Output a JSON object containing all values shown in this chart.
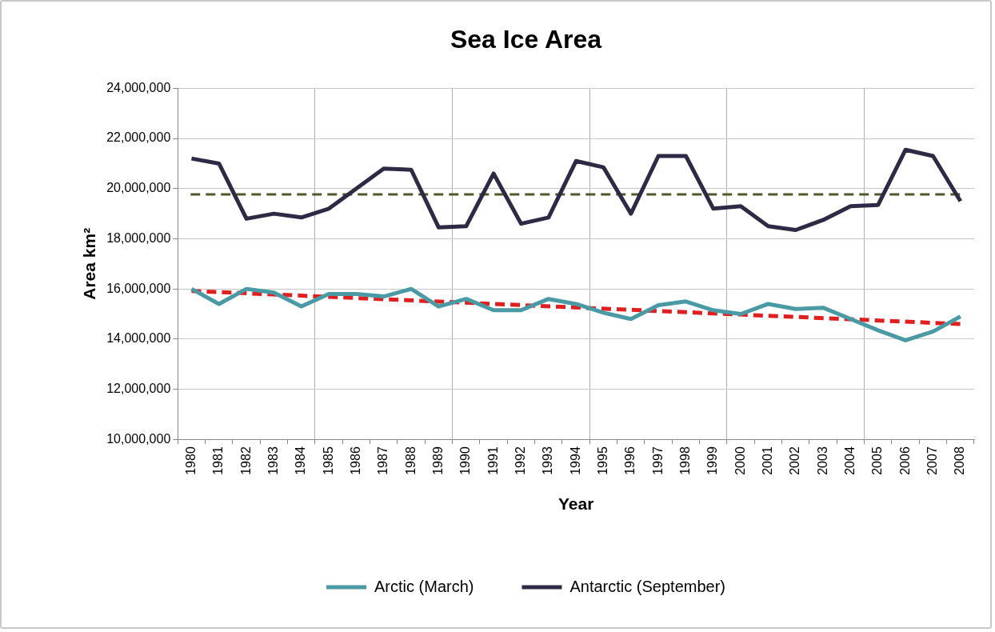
{
  "chart_data": {
    "type": "line",
    "title": "Sea Ice Area",
    "xlabel": "Year",
    "ylabel": "Area km²",
    "categories": [
      "1980",
      "1981",
      "1982",
      "1983",
      "1984",
      "1985",
      "1986",
      "1987",
      "1988",
      "1989",
      "1990",
      "1991",
      "1992",
      "1993",
      "1994",
      "1995",
      "1996",
      "1997",
      "1998",
      "1999",
      "2000",
      "2001",
      "2002",
      "2003",
      "2004",
      "2005",
      "2006",
      "2007",
      "2008"
    ],
    "series": [
      {
        "name": "Arctic (March)",
        "color": "#4a9aa5",
        "values": [
          16000000,
          15400000,
          16000000,
          15850000,
          15300000,
          15800000,
          15800000,
          15700000,
          16000000,
          15300000,
          15600000,
          15150000,
          15150000,
          15600000,
          15400000,
          15050000,
          14800000,
          15350000,
          15500000,
          15150000,
          15000000,
          15400000,
          15200000,
          15250000,
          14800000,
          14350000,
          13950000,
          14300000,
          14900000
        ]
      },
      {
        "name": "Antarctic (September)",
        "color": "#2e2a45",
        "values": [
          21200000,
          21000000,
          18800000,
          19000000,
          18850000,
          19200000,
          20000000,
          20800000,
          20750000,
          18450000,
          18500000,
          20600000,
          18600000,
          18850000,
          21100000,
          20850000,
          19000000,
          21300000,
          21300000,
          19200000,
          19300000,
          18500000,
          18350000,
          18750000,
          19300000,
          19350000,
          21550000,
          21300000,
          19500000
        ]
      },
      {
        "type": "line",
        "color": "#e02020",
        "line_style": "dashed",
        "values": [
          15920000,
          null,
          null,
          null,
          null,
          null,
          null,
          null,
          null,
          null,
          null,
          null,
          null,
          null,
          null,
          null,
          null,
          null,
          null,
          null,
          null,
          null,
          null,
          null,
          null,
          null,
          null,
          null,
          14600000
        ]
      }
    ],
    "ref_lines": [
      {
        "axis": "y",
        "value": 19770000,
        "color": "#4f5a2a",
        "line_style": "dashed"
      }
    ],
    "ylim": [
      10000000,
      24000000
    ],
    "yticks": [
      {
        "value": 10000000,
        "label": "10,000,000"
      },
      {
        "value": 12000000,
        "label": "12,000,000"
      },
      {
        "value": 14000000,
        "label": "14,000,000"
      },
      {
        "value": 16000000,
        "label": "16,000,000"
      },
      {
        "value": 18000000,
        "label": "18,000,000"
      },
      {
        "value": 20000000,
        "label": "20,000,000"
      },
      {
        "value": 22000000,
        "label": "22,000,000"
      },
      {
        "value": 24000000,
        "label": "24,000,000"
      }
    ],
    "grid": true,
    "legend": "bottom"
  }
}
